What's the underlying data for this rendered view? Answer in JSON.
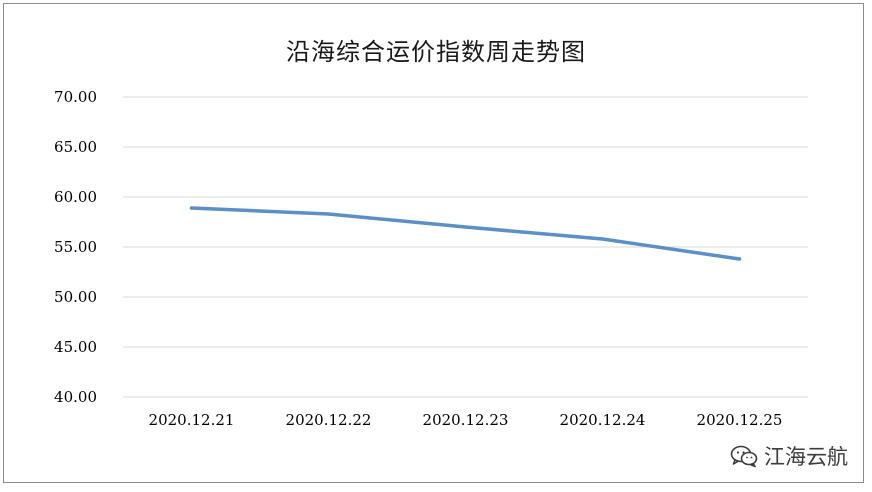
{
  "chart_data": {
    "type": "line",
    "title": "沿海综合运价指数周走势图",
    "xlabel": "",
    "ylabel": "",
    "categories": [
      "2020.12.21",
      "2020.12.22",
      "2020.12.23",
      "2020.12.24",
      "2020.12.25"
    ],
    "series": [
      {
        "values": [
          58.9,
          58.3,
          57.0,
          55.8,
          53.8
        ],
        "color": "#5b8fc7"
      }
    ],
    "ylim": [
      40,
      70
    ],
    "yticks": [
      "40.00",
      "45.00",
      "50.00",
      "55.00",
      "60.00",
      "65.00",
      "70.00"
    ],
    "grid": true,
    "legend": "none"
  },
  "watermark": {
    "icon": "wechat-icon",
    "text": "江海云航"
  }
}
